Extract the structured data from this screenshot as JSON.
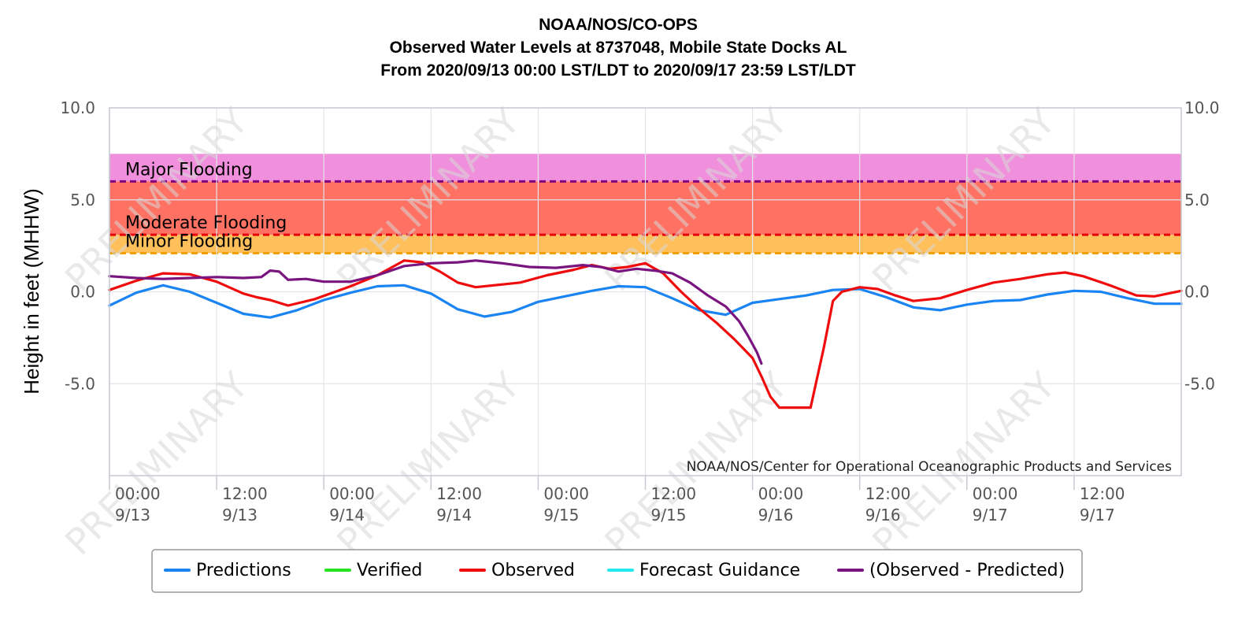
{
  "chart_data": {
    "type": "line",
    "title": "NOAA/NOS/CO-OPS",
    "subtitle_lines": [
      "Observed Water Levels at 8737048, Mobile State Docks AL",
      "From 2020/09/13 00:00 LST/LDT to 2020/09/17 23:59 LST/LDT"
    ],
    "ylabel": "Height in feet (MHHW)",
    "ylim": [
      -10,
      10
    ],
    "y_ticks": [
      {
        "value": 10,
        "label": "10.0"
      },
      {
        "value": 5,
        "label": "5.0"
      },
      {
        "value": 0,
        "label": "0.0"
      },
      {
        "value": -5,
        "label": "-5.0"
      }
    ],
    "xlim": [
      "2020-09-13 00:00",
      "2020-09-18 00:00"
    ],
    "x_ticks": [
      {
        "x": "2020-09-13 00:00",
        "time": "00:00",
        "date": "9/13"
      },
      {
        "x": "2020-09-13 12:00",
        "time": "12:00",
        "date": "9/13"
      },
      {
        "x": "2020-09-14 00:00",
        "time": "00:00",
        "date": "9/14"
      },
      {
        "x": "2020-09-14 12:00",
        "time": "12:00",
        "date": "9/14"
      },
      {
        "x": "2020-09-15 00:00",
        "time": "00:00",
        "date": "9/15"
      },
      {
        "x": "2020-09-15 12:00",
        "time": "12:00",
        "date": "9/15"
      },
      {
        "x": "2020-09-16 00:00",
        "time": "00:00",
        "date": "9/16"
      },
      {
        "x": "2020-09-16 12:00",
        "time": "12:00",
        "date": "9/16"
      },
      {
        "x": "2020-09-17 00:00",
        "time": "00:00",
        "date": "9/17"
      },
      {
        "x": "2020-09-17 12:00",
        "time": "12:00",
        "date": "9/17"
      }
    ],
    "grid": true,
    "bands": [
      {
        "name": "Major Flooding",
        "from": 6.0,
        "to": 7.5,
        "color": "#f08fdc",
        "line_color": "#800080"
      },
      {
        "name": "Moderate Flooding",
        "from": 3.1,
        "to": 6.0,
        "color": "#ff7163",
        "line_color": "#e8000b"
      },
      {
        "name": "Minor Flooding",
        "from": 2.1,
        "to": 3.1,
        "color": "#ffc05c",
        "line_color": "#f0a000"
      }
    ],
    "series": [
      {
        "name": "Predictions",
        "color": "#1a84f2",
        "points": [
          [
            "2020-09-13 00:00",
            -0.75
          ],
          [
            "2020-09-13 03:00",
            -0.05
          ],
          [
            "2020-09-13 06:00",
            0.35
          ],
          [
            "2020-09-13 09:00",
            0.0
          ],
          [
            "2020-09-13 12:00",
            -0.6
          ],
          [
            "2020-09-13 15:00",
            -1.2
          ],
          [
            "2020-09-13 18:00",
            -1.4
          ],
          [
            "2020-09-13 21:00",
            -1.0
          ],
          [
            "2020-09-14 00:00",
            -0.45
          ],
          [
            "2020-09-14 03:00",
            -0.05
          ],
          [
            "2020-09-14 06:00",
            0.3
          ],
          [
            "2020-09-14 09:00",
            0.35
          ],
          [
            "2020-09-14 12:00",
            -0.1
          ],
          [
            "2020-09-14 15:00",
            -0.95
          ],
          [
            "2020-09-14 18:00",
            -1.35
          ],
          [
            "2020-09-14 21:00",
            -1.1
          ],
          [
            "2020-09-15 00:00",
            -0.55
          ],
          [
            "2020-09-15 03:00",
            -0.25
          ],
          [
            "2020-09-15 06:00",
            0.05
          ],
          [
            "2020-09-15 09:00",
            0.3
          ],
          [
            "2020-09-15 12:00",
            0.25
          ],
          [
            "2020-09-15 15:00",
            -0.35
          ],
          [
            "2020-09-15 18:00",
            -1.0
          ],
          [
            "2020-09-15 21:00",
            -1.25
          ],
          [
            "2020-09-16 00:00",
            -0.6
          ],
          [
            "2020-09-16 03:00",
            -0.4
          ],
          [
            "2020-09-16 06:00",
            -0.2
          ],
          [
            "2020-09-16 09:00",
            0.1
          ],
          [
            "2020-09-16 12:00",
            0.15
          ],
          [
            "2020-09-16 15:00",
            -0.3
          ],
          [
            "2020-09-16 18:00",
            -0.85
          ],
          [
            "2020-09-16 21:00",
            -1.0
          ],
          [
            "2020-09-17 00:00",
            -0.7
          ],
          [
            "2020-09-17 03:00",
            -0.5
          ],
          [
            "2020-09-17 06:00",
            -0.45
          ],
          [
            "2020-09-17 09:00",
            -0.15
          ],
          [
            "2020-09-17 12:00",
            0.05
          ],
          [
            "2020-09-17 15:00",
            0.0
          ],
          [
            "2020-09-17 18:00",
            -0.35
          ],
          [
            "2020-09-17 21:00",
            -0.65
          ],
          [
            "2020-09-18 00:00",
            -0.65
          ]
        ]
      },
      {
        "name": "Verified",
        "color": "#26e21f",
        "points": []
      },
      {
        "name": "Observed",
        "color": "#ef0c0c",
        "points": [
          [
            "2020-09-13 00:00",
            0.1
          ],
          [
            "2020-09-13 03:00",
            0.6
          ],
          [
            "2020-09-13 06:00",
            1.0
          ],
          [
            "2020-09-13 09:00",
            0.95
          ],
          [
            "2020-09-13 12:00",
            0.55
          ],
          [
            "2020-09-13 15:00",
            -0.1
          ],
          [
            "2020-09-13 16:30",
            -0.3
          ],
          [
            "2020-09-13 18:00",
            -0.45
          ],
          [
            "2020-09-13 20:00",
            -0.75
          ],
          [
            "2020-09-13 23:00",
            -0.4
          ],
          [
            "2020-09-14 03:00",
            0.3
          ],
          [
            "2020-09-14 06:00",
            0.9
          ],
          [
            "2020-09-14 09:00",
            1.7
          ],
          [
            "2020-09-14 11:00",
            1.6
          ],
          [
            "2020-09-14 13:00",
            1.1
          ],
          [
            "2020-09-14 15:00",
            0.5
          ],
          [
            "2020-09-14 17:00",
            0.25
          ],
          [
            "2020-09-14 20:00",
            0.4
          ],
          [
            "2020-09-14 22:00",
            0.5
          ],
          [
            "2020-09-15 01:00",
            0.9
          ],
          [
            "2020-09-15 04:00",
            1.2
          ],
          [
            "2020-09-15 06:00",
            1.45
          ],
          [
            "2020-09-15 08:00",
            1.25
          ],
          [
            "2020-09-15 10:00",
            1.35
          ],
          [
            "2020-09-15 12:00",
            1.55
          ],
          [
            "2020-09-15 14:00",
            1.0
          ],
          [
            "2020-09-15 16:00",
            0.0
          ],
          [
            "2020-09-15 18:00",
            -0.9
          ],
          [
            "2020-09-15 20:00",
            -1.7
          ],
          [
            "2020-09-15 22:00",
            -2.6
          ],
          [
            "2020-09-16 00:00",
            -3.6
          ],
          [
            "2020-09-16 01:00",
            -4.6
          ],
          [
            "2020-09-16 02:00",
            -5.7
          ],
          [
            "2020-09-16 03:00",
            -6.3
          ],
          [
            "2020-09-16 06:30",
            -6.3
          ],
          [
            "2020-09-16 08:00",
            -3.0
          ],
          [
            "2020-09-16 09:00",
            -0.5
          ],
          [
            "2020-09-16 10:00",
            0.0
          ],
          [
            "2020-09-16 12:00",
            0.25
          ],
          [
            "2020-09-16 14:00",
            0.15
          ],
          [
            "2020-09-16 16:00",
            -0.2
          ],
          [
            "2020-09-16 18:00",
            -0.5
          ],
          [
            "2020-09-16 21:00",
            -0.35
          ],
          [
            "2020-09-17 00:00",
            0.1
          ],
          [
            "2020-09-17 03:00",
            0.5
          ],
          [
            "2020-09-17 06:00",
            0.7
          ],
          [
            "2020-09-17 09:00",
            0.95
          ],
          [
            "2020-09-17 11:00",
            1.05
          ],
          [
            "2020-09-17 13:00",
            0.85
          ],
          [
            "2020-09-17 16:00",
            0.35
          ],
          [
            "2020-09-17 19:00",
            -0.2
          ],
          [
            "2020-09-17 21:00",
            -0.25
          ],
          [
            "2020-09-18 00:00",
            0.05
          ]
        ]
      },
      {
        "name": "Forecast Guidance",
        "color": "#23eaf0",
        "points": []
      },
      {
        "name": "(Observed - Predicted)",
        "color": "#7a1580",
        "points": [
          [
            "2020-09-13 00:00",
            0.85
          ],
          [
            "2020-09-13 03:00",
            0.75
          ],
          [
            "2020-09-13 06:00",
            0.7
          ],
          [
            "2020-09-13 09:00",
            0.75
          ],
          [
            "2020-09-13 12:00",
            0.8
          ],
          [
            "2020-09-13 15:00",
            0.75
          ],
          [
            "2020-09-13 17:00",
            0.8
          ],
          [
            "2020-09-13 18:00",
            1.15
          ],
          [
            "2020-09-13 19:00",
            1.1
          ],
          [
            "2020-09-13 20:00",
            0.65
          ],
          [
            "2020-09-13 22:00",
            0.7
          ],
          [
            "2020-09-14 00:00",
            0.55
          ],
          [
            "2020-09-14 03:00",
            0.55
          ],
          [
            "2020-09-14 06:00",
            0.9
          ],
          [
            "2020-09-14 09:00",
            1.4
          ],
          [
            "2020-09-14 12:00",
            1.55
          ],
          [
            "2020-09-14 15:00",
            1.6
          ],
          [
            "2020-09-14 17:00",
            1.7
          ],
          [
            "2020-09-14 20:00",
            1.55
          ],
          [
            "2020-09-14 23:00",
            1.35
          ],
          [
            "2020-09-15 02:00",
            1.3
          ],
          [
            "2020-09-15 05:00",
            1.45
          ],
          [
            "2020-09-15 07:00",
            1.35
          ],
          [
            "2020-09-15 09:00",
            1.1
          ],
          [
            "2020-09-15 11:00",
            1.25
          ],
          [
            "2020-09-15 13:00",
            1.15
          ],
          [
            "2020-09-15 15:00",
            1.0
          ],
          [
            "2020-09-15 17:00",
            0.5
          ],
          [
            "2020-09-15 19:00",
            -0.2
          ],
          [
            "2020-09-15 21:00",
            -0.8
          ],
          [
            "2020-09-15 22:30",
            -1.6
          ],
          [
            "2020-09-15 23:30",
            -2.4
          ],
          [
            "2020-09-16 00:30",
            -3.3
          ],
          [
            "2020-09-16 01:00",
            -3.9
          ]
        ]
      }
    ],
    "legend": {
      "position": "bottom",
      "entries": [
        "Predictions",
        "Verified",
        "Observed",
        "Forecast Guidance",
        "(Observed - Predicted)"
      ]
    },
    "credit": "NOAA/NOS/Center for Operational Oceanographic Products and Services",
    "watermark": "PRELIMINARY"
  }
}
